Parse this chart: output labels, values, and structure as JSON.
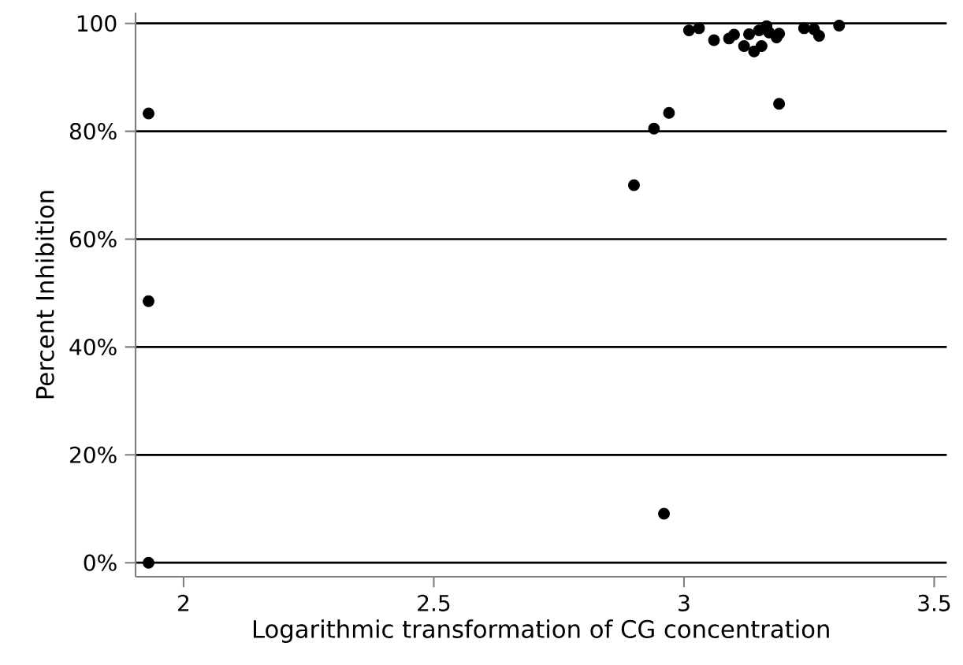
{
  "chart_data": {
    "type": "scatter",
    "xlabel": "Logarithmic transformation of CG concentration",
    "ylabel": "Percent Inhibition",
    "x": [
      1.93,
      1.93,
      1.93,
      2.9,
      2.94,
      2.96,
      2.97,
      3.01,
      3.03,
      3.06,
      3.09,
      3.1,
      3.12,
      3.13,
      3.14,
      3.15,
      3.155,
      3.165,
      3.17,
      3.185,
      3.19,
      3.19,
      3.24,
      3.26,
      3.27,
      3.31
    ],
    "values": [
      83.3,
      48.5,
      0,
      70,
      80.5,
      9.1,
      83.4,
      98.7,
      99.1,
      96.9,
      97.2,
      97.9,
      95.8,
      98.0,
      94.8,
      98.7,
      95.8,
      99.5,
      98.3,
      97.4,
      98.1,
      85.1,
      99.1,
      98.9,
      97.7,
      99.6
    ],
    "color": "#000000",
    "marker": "circle",
    "xlim": [
      1.904,
      3.525
    ],
    "xticks": [
      2,
      2.5,
      3,
      3.5
    ],
    "ylim": [
      -2.6,
      102
    ],
    "yticks": [
      {
        "value": 0,
        "label": "0%"
      },
      {
        "value": 20,
        "label": "20%"
      },
      {
        "value": 40,
        "label": "40%"
      },
      {
        "value": 60,
        "label": "60%"
      },
      {
        "value": 80,
        "label": "80%"
      },
      100
    ],
    "grid": "y"
  }
}
